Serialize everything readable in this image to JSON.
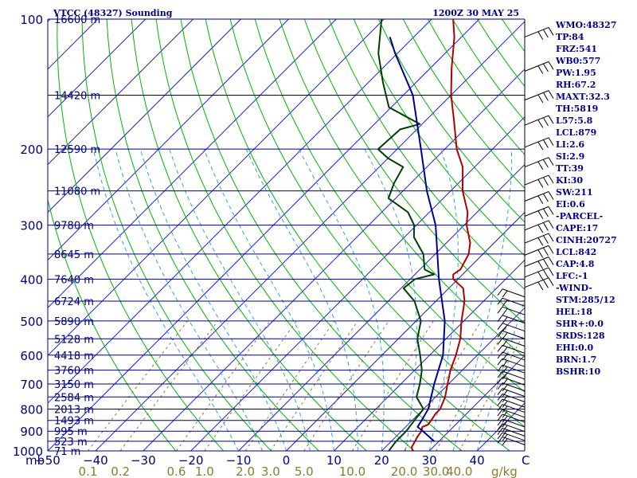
{
  "chart_data": {
    "type": "skew-t",
    "title": "VTCC (48327) Sounding",
    "datetime": "1200Z 30 MAY 25",
    "pressure_axis": {
      "corner_label": "mb",
      "levels": [
        100,
        200,
        300,
        400,
        500,
        600,
        700,
        800,
        900,
        1000
      ],
      "range": [
        100,
        1000
      ],
      "scale": "log"
    },
    "temperature_axis": {
      "ticks": [
        -50,
        -40,
        -30,
        -20,
        -10,
        0,
        10,
        20,
        30,
        40
      ],
      "end_label": "C",
      "range": [
        -50,
        50
      ],
      "labels": [
        "−50",
        "−40",
        "−30",
        "−20",
        "−10",
        "0",
        "10",
        "20",
        "30",
        "40"
      ]
    },
    "mixing_ratio_axis": {
      "values": [
        0.1,
        0.2,
        0.6,
        1.0,
        2.0,
        3.0,
        5.0,
        10.0,
        20.0,
        30.0,
        40.0
      ],
      "labels": [
        "0.1",
        "0.2",
        "0.6",
        "1.0",
        "2.0",
        "3.0",
        "5.0",
        "10.0",
        "20.0",
        "30.0",
        "40.0"
      ],
      "unit": "g/kg"
    },
    "heights": [
      {
        "p": 100,
        "label": "16600 m"
      },
      {
        "p": 150,
        "label": "14420 m"
      },
      {
        "p": 200,
        "label": "12590 m"
      },
      {
        "p": 250,
        "label": "11080 m"
      },
      {
        "p": 300,
        "label": "9780 m"
      },
      {
        "p": 350,
        "label": "8645 m"
      },
      {
        "p": 400,
        "label": "7640 m"
      },
      {
        "p": 450,
        "label": "6724 m"
      },
      {
        "p": 500,
        "label": "5890 m"
      },
      {
        "p": 550,
        "label": "5128 m"
      },
      {
        "p": 600,
        "label": "4418 m"
      },
      {
        "p": 650,
        "label": "3760 m"
      },
      {
        "p": 700,
        "label": "3150 m"
      },
      {
        "p": 750,
        "label": "2584 m"
      },
      {
        "p": 800,
        "label": "2013 m"
      },
      {
        "p": 850,
        "label": "1493 m"
      },
      {
        "p": 900,
        "label": "995 m"
      },
      {
        "p": 950,
        "label": "523 m"
      },
      {
        "p": 1000,
        "label": "71 m"
      }
    ],
    "series": [
      {
        "key": "temperature",
        "color": "#b00000",
        "points": [
          [
            1000,
            26.5
          ],
          [
            980,
            25.5
          ],
          [
            950,
            25.0
          ],
          [
            925,
            24.5
          ],
          [
            900,
            24.2
          ],
          [
            880,
            23.5
          ],
          [
            870,
            24.2
          ],
          [
            850,
            24.0
          ],
          [
            820,
            23.5
          ],
          [
            800,
            23.5
          ],
          [
            750,
            22.0
          ],
          [
            700,
            19.8
          ],
          [
            650,
            17.5
          ],
          [
            600,
            15.5
          ],
          [
            550,
            13.0
          ],
          [
            500,
            9.5
          ],
          [
            450,
            6.0
          ],
          [
            420,
            3.0
          ],
          [
            400,
            -1.0
          ],
          [
            390,
            -2.0
          ],
          [
            380,
            -1.5
          ],
          [
            350,
            -3.0
          ],
          [
            330,
            -5.0
          ],
          [
            300,
            -9.5
          ],
          [
            280,
            -12.0
          ],
          [
            250,
            -17.5
          ],
          [
            220,
            -22.5
          ],
          [
            200,
            -27.5
          ],
          [
            170,
            -34.5
          ],
          [
            150,
            -40.0
          ],
          [
            130,
            -45.5
          ],
          [
            110,
            -51.5
          ],
          [
            100,
            -55.5
          ]
        ]
      },
      {
        "key": "dewpoint",
        "color": "#004000",
        "points": [
          [
            1000,
            21.5
          ],
          [
            950,
            21.0
          ],
          [
            900,
            21.0
          ],
          [
            850,
            20.5
          ],
          [
            800,
            20.0
          ],
          [
            750,
            16.0
          ],
          [
            700,
            14.0
          ],
          [
            650,
            11.5
          ],
          [
            600,
            8.0
          ],
          [
            550,
            4.0
          ],
          [
            500,
            1.0
          ],
          [
            450,
            -4.5
          ],
          [
            420,
            -9.5
          ],
          [
            400,
            -9.0
          ],
          [
            390,
            -6.0
          ],
          [
            380,
            -9.0
          ],
          [
            350,
            -12.5
          ],
          [
            320,
            -18.0
          ],
          [
            300,
            -20.5
          ],
          [
            280,
            -24.5
          ],
          [
            260,
            -31.5
          ],
          [
            240,
            -33.5
          ],
          [
            220,
            -35.0
          ],
          [
            210,
            -40.0
          ],
          [
            200,
            -44.0
          ],
          [
            180,
            -43.5
          ],
          [
            175,
            -40.5
          ],
          [
            160,
            -50.5
          ],
          [
            140,
            -57.0
          ],
          [
            120,
            -64.0
          ],
          [
            100,
            -70.5
          ]
        ]
      },
      {
        "key": "parcel",
        "color": "#000090",
        "points": [
          [
            950,
            29.0
          ],
          [
            900,
            24.5
          ],
          [
            880,
            22.5
          ],
          [
            850,
            22.0
          ],
          [
            800,
            21.0
          ],
          [
            700,
            17.0
          ],
          [
            600,
            12.8
          ],
          [
            500,
            6.0
          ],
          [
            400,
            -4.0
          ],
          [
            300,
            -16.0
          ],
          [
            250,
            -25.0
          ],
          [
            200,
            -35.0
          ],
          [
            150,
            -48.0
          ],
          [
            120,
            -60.5
          ],
          [
            110,
            -65.0
          ]
        ]
      }
    ],
    "indices": [
      "WMO:48327",
      "TP:84",
      "FRZ:541",
      "WB0:577",
      "PW:1.95",
      "RH:67.2",
      "MAXT:32.3",
      "TH:5819",
      "L57:5.8",
      "LCL:879",
      "LI:2.6",
      "SI:2.9",
      "TT:39",
      "KI:30",
      "SW:211",
      "EI:0.6",
      "-PARCEL-",
      "CAPE:17",
      "CINH:20727",
      "LCL:842",
      "CAP:4.8",
      "LFC:-1",
      "-WIND-",
      "STM:285/12",
      "HEL:18",
      "SHR+:0.0",
      "SRDS:128",
      "EHI:0.0",
      "BRN:1.7",
      "BSHR:10"
    ],
    "colors": {
      "isobar": "#000080",
      "isotherm": "#1e1ec8",
      "dry_adiabat": "#00b400",
      "moist_adiabat": "#32a0dc",
      "mixing_ratio": "#8b7d2b",
      "temperature": "#b00000",
      "dewpoint": "#004000",
      "parcel": "#000090",
      "text": "#00008b"
    }
  }
}
